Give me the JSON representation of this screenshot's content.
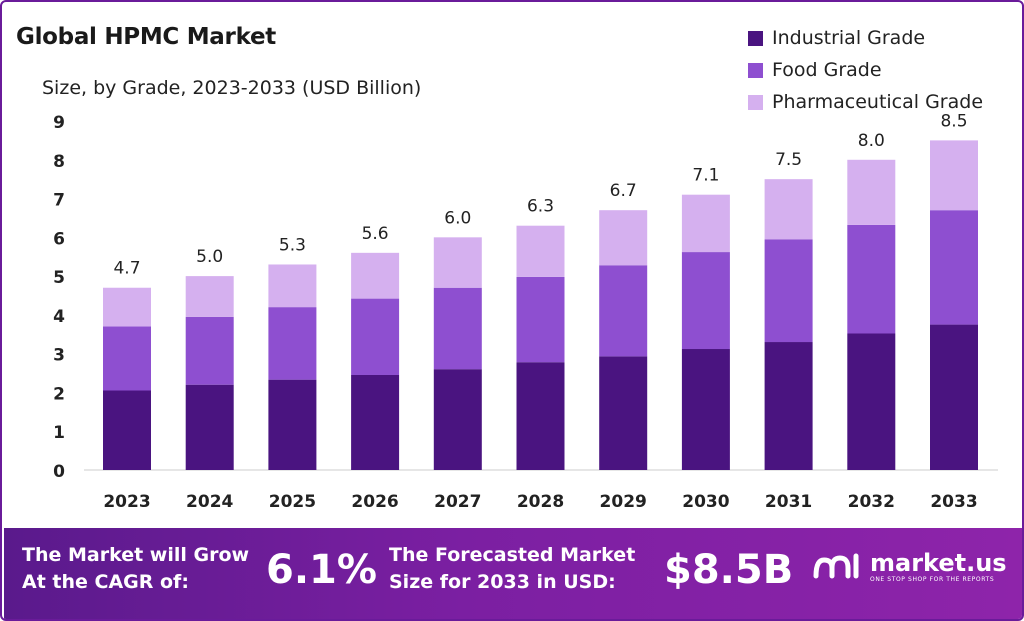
{
  "title": "Global HPMC Market",
  "subtitle": "Size, by Grade, 2023-2033 (USD Billion)",
  "colors": {
    "industrial": "#4a1480",
    "food": "#8e4fd0",
    "pharma": "#d5b0ef",
    "banner": "#7b1fa2"
  },
  "chart_data": {
    "type": "bar",
    "stacked": true,
    "title": "Global HPMC Market",
    "subtitle": "Size, by Grade, 2023-2033 (USD Billion)",
    "xlabel": "",
    "ylabel": "",
    "ylim": [
      0,
      9
    ],
    "yticks": [
      "0",
      "1",
      "2",
      "3",
      "4",
      "5",
      "6",
      "7",
      "8",
      "9"
    ],
    "grid": false,
    "legend_position": "top-right",
    "categories": [
      "2023",
      "2024",
      "2025",
      "2026",
      "2027",
      "2028",
      "2029",
      "2030",
      "2031",
      "2032",
      "2033"
    ],
    "series": [
      {
        "name": "Industrial Grade",
        "color": "#4a1480",
        "values": [
          2.05,
          2.2,
          2.33,
          2.45,
          2.6,
          2.78,
          2.93,
          3.12,
          3.3,
          3.52,
          3.75
        ]
      },
      {
        "name": "Food Grade",
        "color": "#8e4fd0",
        "values": [
          1.65,
          1.75,
          1.87,
          1.97,
          2.1,
          2.2,
          2.35,
          2.5,
          2.65,
          2.8,
          2.95
        ]
      },
      {
        "name": "Pharmaceutical Grade",
        "color": "#d5b0ef",
        "values": [
          1.0,
          1.05,
          1.1,
          1.18,
          1.3,
          1.32,
          1.42,
          1.48,
          1.55,
          1.68,
          1.8
        ]
      }
    ],
    "totals": [
      "4.7",
      "5.0",
      "5.3",
      "5.6",
      "6.0",
      "6.3",
      "6.7",
      "7.1",
      "7.5",
      "8.0",
      "8.5"
    ]
  },
  "banner": {
    "cagr_label_line1": "The Market will Grow",
    "cagr_label_line2": "At the CAGR of:",
    "cagr_value": "6.1%",
    "forecast_label_line1": "The Forecasted Market",
    "forecast_label_line2": "Size for 2033 in USD:",
    "forecast_value": "$8.5B",
    "brand_name": "market.us",
    "brand_tagline": "ONE STOP SHOP FOR THE REPORTS"
  }
}
